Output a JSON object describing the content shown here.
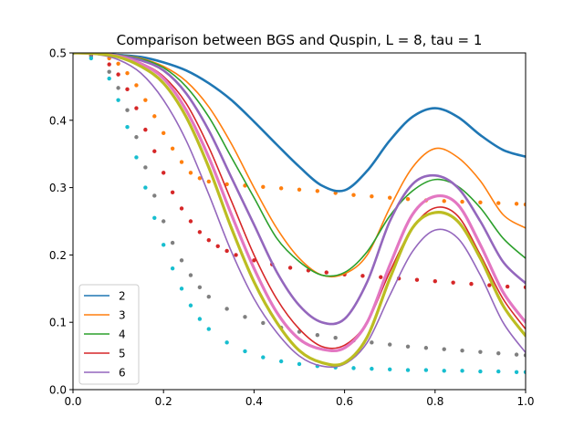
{
  "chart_data": {
    "type": "line",
    "title": "Comparison between BGS and Quspin, L = 8, tau = 1",
    "xlabel": "",
    "ylabel": "",
    "xlim": [
      0.0,
      1.0
    ],
    "ylim": [
      0.0,
      0.5
    ],
    "xticks": [
      "0.0",
      "0.2",
      "0.4",
      "0.6",
      "0.8",
      "1.0"
    ],
    "yticks": [
      "0.0",
      "0.1",
      "0.2",
      "0.3",
      "0.4",
      "0.5"
    ],
    "grid": false,
    "legend_position": "lower-left",
    "legend": [
      "2",
      "3",
      "4",
      "5",
      "6"
    ],
    "series": [
      {
        "name": "2",
        "style": "line",
        "width": 2.6,
        "color": "#1f77b4",
        "x": [
          0.0,
          0.05,
          0.1,
          0.15,
          0.2,
          0.25,
          0.3,
          0.35,
          0.4,
          0.45,
          0.5,
          0.55,
          0.6,
          0.65,
          0.7,
          0.75,
          0.8,
          0.85,
          0.9,
          0.95,
          1.0
        ],
        "y": [
          0.5,
          0.499,
          0.497,
          0.494,
          0.486,
          0.474,
          0.455,
          0.43,
          0.398,
          0.364,
          0.331,
          0.303,
          0.296,
          0.325,
          0.37,
          0.405,
          0.418,
          0.405,
          0.378,
          0.356,
          0.346
        ]
      },
      {
        "name": "3",
        "style": "line",
        "width": 1.6,
        "color": "#ff7f0e",
        "x": [
          0.0,
          0.05,
          0.1,
          0.15,
          0.2,
          0.25,
          0.3,
          0.35,
          0.4,
          0.45,
          0.5,
          0.55,
          0.6,
          0.65,
          0.7,
          0.75,
          0.8,
          0.85,
          0.9,
          0.95,
          1.0
        ],
        "y": [
          0.5,
          0.499,
          0.497,
          0.492,
          0.48,
          0.458,
          0.42,
          0.365,
          0.3,
          0.24,
          0.195,
          0.17,
          0.172,
          0.2,
          0.27,
          0.33,
          0.358,
          0.345,
          0.31,
          0.26,
          0.24
        ]
      },
      {
        "name": "4",
        "style": "line",
        "width": 1.6,
        "color": "#2ca02c",
        "x": [
          0.0,
          0.05,
          0.1,
          0.15,
          0.2,
          0.25,
          0.3,
          0.35,
          0.4,
          0.45,
          0.5,
          0.55,
          0.6,
          0.65,
          0.7,
          0.75,
          0.8,
          0.85,
          0.9,
          0.95,
          1.0
        ],
        "y": [
          0.5,
          0.499,
          0.497,
          0.491,
          0.478,
          0.45,
          0.405,
          0.345,
          0.285,
          0.225,
          0.19,
          0.17,
          0.174,
          0.205,
          0.258,
          0.295,
          0.312,
          0.302,
          0.27,
          0.225,
          0.195
        ]
      },
      {
        "name": "5",
        "style": "line",
        "width": 1.6,
        "color": "#d62728",
        "x": [
          0.0,
          0.05,
          0.1,
          0.15,
          0.2,
          0.25,
          0.3,
          0.35,
          0.4,
          0.45,
          0.5,
          0.55,
          0.6,
          0.65,
          0.7,
          0.75,
          0.8,
          0.85,
          0.9,
          0.95,
          1.0
        ],
        "y": [
          0.5,
          0.499,
          0.495,
          0.485,
          0.465,
          0.425,
          0.36,
          0.28,
          0.2,
          0.135,
          0.09,
          0.064,
          0.066,
          0.1,
          0.175,
          0.24,
          0.27,
          0.258,
          0.2,
          0.135,
          0.09
        ]
      },
      {
        "name": "6",
        "style": "line",
        "width": 1.6,
        "color": "#9467bd",
        "x": [
          0.0,
          0.05,
          0.1,
          0.15,
          0.2,
          0.25,
          0.3,
          0.35,
          0.4,
          0.45,
          0.5,
          0.55,
          0.6,
          0.65,
          0.7,
          0.75,
          0.8,
          0.85,
          0.9,
          0.95,
          1.0
        ],
        "y": [
          0.5,
          0.498,
          0.49,
          0.47,
          0.43,
          0.37,
          0.29,
          0.205,
          0.135,
          0.085,
          0.05,
          0.035,
          0.038,
          0.07,
          0.14,
          0.205,
          0.237,
          0.225,
          0.17,
          0.1,
          0.055
        ]
      },
      {
        "name": "",
        "style": "line",
        "width": 2.6,
        "color": "#9467bd",
        "x": [
          0.0,
          0.05,
          0.1,
          0.15,
          0.2,
          0.25,
          0.3,
          0.35,
          0.4,
          0.45,
          0.5,
          0.55,
          0.6,
          0.65,
          0.7,
          0.75,
          0.8,
          0.85,
          0.9,
          0.95,
          1.0
        ],
        "y": [
          0.5,
          0.499,
          0.496,
          0.489,
          0.474,
          0.44,
          0.385,
          0.315,
          0.245,
          0.175,
          0.125,
          0.1,
          0.105,
          0.16,
          0.25,
          0.305,
          0.318,
          0.3,
          0.25,
          0.19,
          0.158
        ]
      },
      {
        "name": "",
        "style": "line",
        "width": 3.2,
        "color": "#e377c2",
        "x": [
          0.0,
          0.05,
          0.1,
          0.15,
          0.2,
          0.25,
          0.3,
          0.35,
          0.4,
          0.45,
          0.5,
          0.55,
          0.6,
          0.65,
          0.7,
          0.75,
          0.8,
          0.85,
          0.9,
          0.95,
          1.0
        ],
        "y": [
          0.5,
          0.499,
          0.495,
          0.484,
          0.462,
          0.415,
          0.345,
          0.26,
          0.18,
          0.115,
          0.075,
          0.06,
          0.062,
          0.1,
          0.185,
          0.26,
          0.287,
          0.275,
          0.215,
          0.145,
          0.1
        ]
      },
      {
        "name": "",
        "style": "line",
        "width": 3.2,
        "color": "#bcbd22",
        "x": [
          0.0,
          0.05,
          0.1,
          0.15,
          0.2,
          0.25,
          0.3,
          0.35,
          0.4,
          0.45,
          0.5,
          0.55,
          0.6,
          0.65,
          0.7,
          0.75,
          0.8,
          0.85,
          0.9,
          0.95,
          1.0
        ],
        "y": [
          0.5,
          0.499,
          0.494,
          0.48,
          0.455,
          0.405,
          0.33,
          0.24,
          0.16,
          0.1,
          0.058,
          0.04,
          0.04,
          0.078,
          0.165,
          0.24,
          0.263,
          0.25,
          0.195,
          0.125,
          0.08
        ]
      },
      {
        "name": "",
        "style": "dots",
        "color": "#ff7f0e",
        "x": [
          0.0,
          0.04,
          0.08,
          0.1,
          0.12,
          0.14,
          0.16,
          0.18,
          0.2,
          0.22,
          0.24,
          0.26,
          0.28,
          0.3,
          0.34,
          0.38,
          0.42,
          0.46,
          0.5,
          0.54,
          0.58,
          0.62,
          0.66,
          0.7,
          0.74,
          0.78,
          0.82,
          0.86,
          0.9,
          0.94,
          0.98,
          1.0
        ],
        "y": [
          0.5,
          0.498,
          0.492,
          0.484,
          0.47,
          0.452,
          0.43,
          0.406,
          0.381,
          0.358,
          0.338,
          0.322,
          0.314,
          0.309,
          0.305,
          0.303,
          0.301,
          0.299,
          0.297,
          0.295,
          0.292,
          0.289,
          0.287,
          0.285,
          0.283,
          0.281,
          0.28,
          0.279,
          0.278,
          0.277,
          0.276,
          0.275
        ]
      },
      {
        "name": "",
        "style": "dots",
        "color": "#d62728",
        "x": [
          0.0,
          0.04,
          0.08,
          0.1,
          0.12,
          0.14,
          0.16,
          0.18,
          0.2,
          0.22,
          0.24,
          0.26,
          0.28,
          0.3,
          0.32,
          0.34,
          0.36,
          0.4,
          0.44,
          0.48,
          0.52,
          0.56,
          0.6,
          0.64,
          0.68,
          0.72,
          0.76,
          0.8,
          0.84,
          0.88,
          0.92,
          0.96,
          1.0
        ],
        "y": [
          0.5,
          0.497,
          0.483,
          0.468,
          0.446,
          0.418,
          0.386,
          0.354,
          0.322,
          0.293,
          0.269,
          0.25,
          0.234,
          0.222,
          0.213,
          0.206,
          0.2,
          0.192,
          0.186,
          0.181,
          0.177,
          0.174,
          0.171,
          0.169,
          0.167,
          0.165,
          0.163,
          0.161,
          0.159,
          0.157,
          0.155,
          0.153,
          0.152
        ]
      },
      {
        "name": "",
        "style": "dots",
        "color": "#7f7f7f",
        "x": [
          0.0,
          0.04,
          0.08,
          0.1,
          0.12,
          0.14,
          0.16,
          0.18,
          0.2,
          0.22,
          0.24,
          0.26,
          0.28,
          0.3,
          0.34,
          0.38,
          0.42,
          0.46,
          0.5,
          0.54,
          0.58,
          0.62,
          0.66,
          0.7,
          0.74,
          0.78,
          0.82,
          0.86,
          0.9,
          0.94,
          0.98,
          1.0
        ],
        "y": [
          0.5,
          0.495,
          0.472,
          0.448,
          0.415,
          0.375,
          0.33,
          0.288,
          0.25,
          0.218,
          0.192,
          0.17,
          0.152,
          0.138,
          0.12,
          0.108,
          0.099,
          0.092,
          0.086,
          0.081,
          0.077,
          0.073,
          0.07,
          0.067,
          0.064,
          0.062,
          0.06,
          0.058,
          0.056,
          0.054,
          0.052,
          0.051
        ]
      },
      {
        "name": "",
        "style": "dots",
        "color": "#17becf",
        "x": [
          0.0,
          0.04,
          0.08,
          0.1,
          0.12,
          0.14,
          0.16,
          0.18,
          0.2,
          0.22,
          0.24,
          0.26,
          0.28,
          0.3,
          0.34,
          0.38,
          0.42,
          0.46,
          0.5,
          0.54,
          0.58,
          0.62,
          0.66,
          0.7,
          0.74,
          0.78,
          0.82,
          0.86,
          0.9,
          0.94,
          0.98,
          1.0
        ],
        "y": [
          0.5,
          0.492,
          0.462,
          0.43,
          0.39,
          0.345,
          0.3,
          0.255,
          0.215,
          0.18,
          0.15,
          0.125,
          0.105,
          0.09,
          0.07,
          0.057,
          0.048,
          0.042,
          0.038,
          0.035,
          0.033,
          0.032,
          0.031,
          0.03,
          0.029,
          0.029,
          0.028,
          0.028,
          0.027,
          0.027,
          0.026,
          0.026
        ]
      }
    ]
  }
}
